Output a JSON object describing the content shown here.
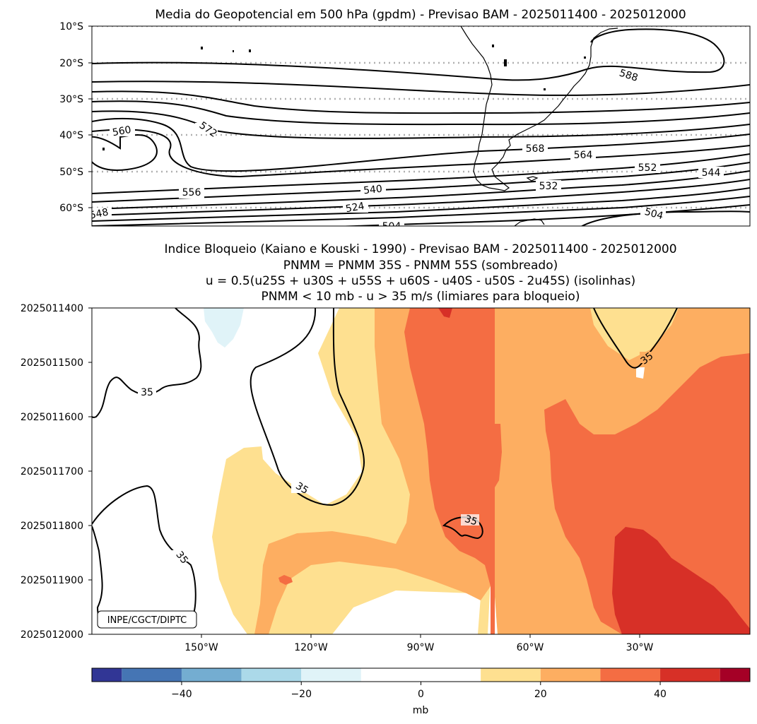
{
  "chart_data": [
    {
      "type": "contour",
      "title": "Media do Geopotencial em 500 hPa (gpdm) - Previsao BAM - 2025011400 - 2025012000",
      "y_tick_labels": [
        "10°S",
        "20°S",
        "30°S",
        "40°S",
        "50°S",
        "60°S"
      ],
      "y_tick_values": [
        -10,
        -20,
        -30,
        -40,
        -50,
        -60
      ],
      "ylim": [
        -65.5,
        -10
      ],
      "xlim": [
        -180,
        0
      ],
      "gridlines": "dotted gray at 10°S-60°S",
      "contour_levels": [
        {
          "label": "588"
        },
        {
          "label": "572"
        },
        {
          "label": "568"
        },
        {
          "label": "564"
        },
        {
          "label": "560"
        },
        {
          "label": "556"
        },
        {
          "label": "552"
        },
        {
          "label": "548"
        },
        {
          "label": "544"
        },
        {
          "label": "540"
        },
        {
          "label": "532"
        },
        {
          "label": "524"
        },
        {
          "label": "504"
        },
        {
          "label": "504"
        }
      ]
    },
    {
      "type": "heatmap",
      "title_lines": [
        "Indice Bloqueio (Kaiano e Kouski - 1990) - Previsao BAM - 2025011400 - 2025012000",
        "PNMM = PNMM 35S - PNMM 55S (sombreado)",
        "u = 0.5(u25S + u30S + u55S + u60S - u40S - u50S - 2u45S) (isolinhas)",
        "PNMM < 10 mb - u > 35 m/s (limiares para bloqueio)"
      ],
      "y_tick_labels": [
        "2025011400",
        "2025011500",
        "2025011600",
        "2025011700",
        "2025011800",
        "2025011900",
        "2025012000"
      ],
      "x_tick_labels": [
        "150°W",
        "120°W",
        "90°W",
        "60°W",
        "30°W"
      ],
      "x_tick_values": [
        -150,
        -120,
        -90,
        -60,
        -30
      ],
      "xlim": [
        -180,
        0
      ],
      "contour_level": 35,
      "contour_labels": [
        "35",
        "35",
        "35",
        "35",
        "35"
      ],
      "annotation": "INPE/CGCT/DIPTC"
    },
    {
      "type": "colorbar",
      "boundaries": [
        -55,
        -50,
        -40,
        -30,
        -20,
        -10,
        10,
        20,
        30,
        40,
        50,
        55
      ],
      "colors": [
        "#313695",
        "#4575b4",
        "#74add1",
        "#abd9e9",
        "#e0f3f8",
        "#ffffff",
        "#fee090",
        "#fdae61",
        "#f46d43",
        "#d73027",
        "#a50026"
      ],
      "tick_labels": [
        "−40",
        "−20",
        "0",
        "20",
        "40"
      ],
      "tick_values": [
        -40,
        -20,
        0,
        20,
        40
      ],
      "label": "mb"
    }
  ]
}
